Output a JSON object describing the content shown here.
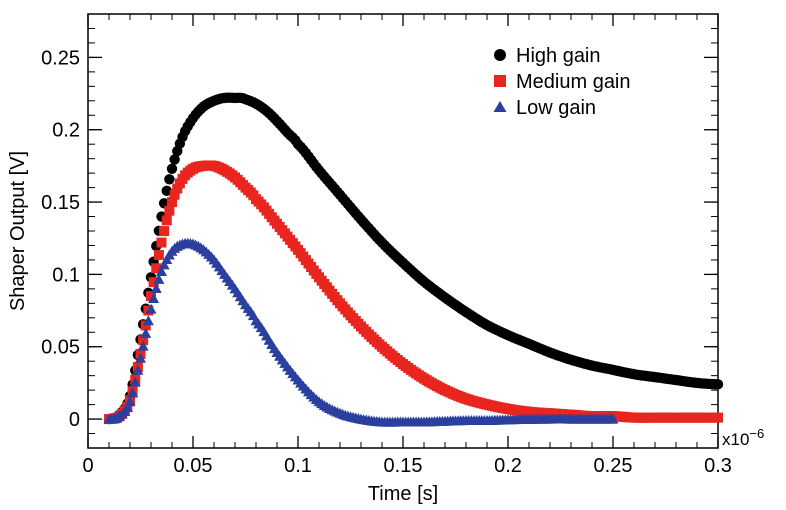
{
  "chart_data": {
    "type": "scatter",
    "xlabel": "Time [s]",
    "ylabel": "Shaper Output [V]",
    "x_multiplier_label": "x10",
    "x_multiplier_exponent": "−6",
    "xlim": [
      0,
      0.3
    ],
    "ylim": [
      -0.02,
      0.28
    ],
    "x_ticks": [
      0,
      0.05,
      0.1,
      0.15,
      0.2,
      0.25,
      0.3
    ],
    "x_tick_labels": [
      "0",
      "0.05",
      "0.1",
      "0.15",
      "0.2",
      "0.25",
      "0.3"
    ],
    "y_ticks": [
      0,
      0.05,
      0.1,
      0.15,
      0.2,
      0.25
    ],
    "y_tick_labels": [
      "0",
      "0.05",
      "0.1",
      "0.15",
      "0.2",
      "0.25"
    ],
    "grid": false,
    "legend_position": "top-right",
    "series": [
      {
        "name": "High gain",
        "marker": "circle",
        "color": "#000000",
        "x": [
          0.01,
          0.015,
          0.02,
          0.025,
          0.03,
          0.035,
          0.04,
          0.045,
          0.05,
          0.055,
          0.06,
          0.065,
          0.07,
          0.073,
          0.075,
          0.08,
          0.085,
          0.09,
          0.095,
          0.1,
          0.11,
          0.12,
          0.13,
          0.14,
          0.15,
          0.16,
          0.17,
          0.18,
          0.19,
          0.2,
          0.21,
          0.22,
          0.23,
          0.24,
          0.25,
          0.26,
          0.27,
          0.28,
          0.29,
          0.3
        ],
        "y": [
          0.0,
          0.003,
          0.016,
          0.055,
          0.098,
          0.14,
          0.173,
          0.195,
          0.208,
          0.216,
          0.22,
          0.222,
          0.222,
          0.222,
          0.221,
          0.218,
          0.213,
          0.206,
          0.198,
          0.19,
          0.172,
          0.155,
          0.138,
          0.122,
          0.108,
          0.095,
          0.084,
          0.074,
          0.065,
          0.058,
          0.052,
          0.046,
          0.041,
          0.037,
          0.034,
          0.031,
          0.029,
          0.027,
          0.025,
          0.024
        ]
      },
      {
        "name": "Medium gain",
        "marker": "square",
        "color": "#e8251f",
        "x": [
          0.01,
          0.015,
          0.02,
          0.025,
          0.03,
          0.035,
          0.04,
          0.045,
          0.05,
          0.055,
          0.06,
          0.065,
          0.07,
          0.075,
          0.08,
          0.09,
          0.1,
          0.11,
          0.12,
          0.13,
          0.14,
          0.15,
          0.16,
          0.17,
          0.18,
          0.19,
          0.2,
          0.21,
          0.22,
          0.23,
          0.24,
          0.25,
          0.26,
          0.27,
          0.28,
          0.29,
          0.3
        ],
        "y": [
          0.0,
          0.002,
          0.013,
          0.045,
          0.085,
          0.122,
          0.15,
          0.166,
          0.173,
          0.175,
          0.175,
          0.172,
          0.167,
          0.16,
          0.152,
          0.135,
          0.117,
          0.098,
          0.08,
          0.064,
          0.05,
          0.038,
          0.028,
          0.02,
          0.014,
          0.01,
          0.007,
          0.005,
          0.004,
          0.003,
          0.002,
          0.002,
          0.001,
          0.001,
          0.001,
          0.001,
          0.001
        ]
      },
      {
        "name": "Low gain",
        "marker": "triangle",
        "color": "#2b3f9e",
        "x": [
          0.01,
          0.015,
          0.02,
          0.025,
          0.03,
          0.035,
          0.04,
          0.045,
          0.05,
          0.055,
          0.06,
          0.065,
          0.07,
          0.075,
          0.08,
          0.09,
          0.1,
          0.11,
          0.12,
          0.13,
          0.14,
          0.15,
          0.16,
          0.17,
          0.18,
          0.19,
          0.2,
          0.21,
          0.22,
          0.23,
          0.24,
          0.25
        ],
        "y": [
          0.0,
          0.002,
          0.012,
          0.042,
          0.076,
          0.102,
          0.116,
          0.121,
          0.121,
          0.117,
          0.11,
          0.1,
          0.09,
          0.079,
          0.068,
          0.046,
          0.027,
          0.012,
          0.004,
          0.0,
          -0.002,
          -0.002,
          -0.002,
          -0.0015,
          -0.001,
          -0.001,
          -0.0005,
          -0.0002,
          0.0,
          0.0,
          0.0,
          0.0
        ]
      }
    ]
  }
}
